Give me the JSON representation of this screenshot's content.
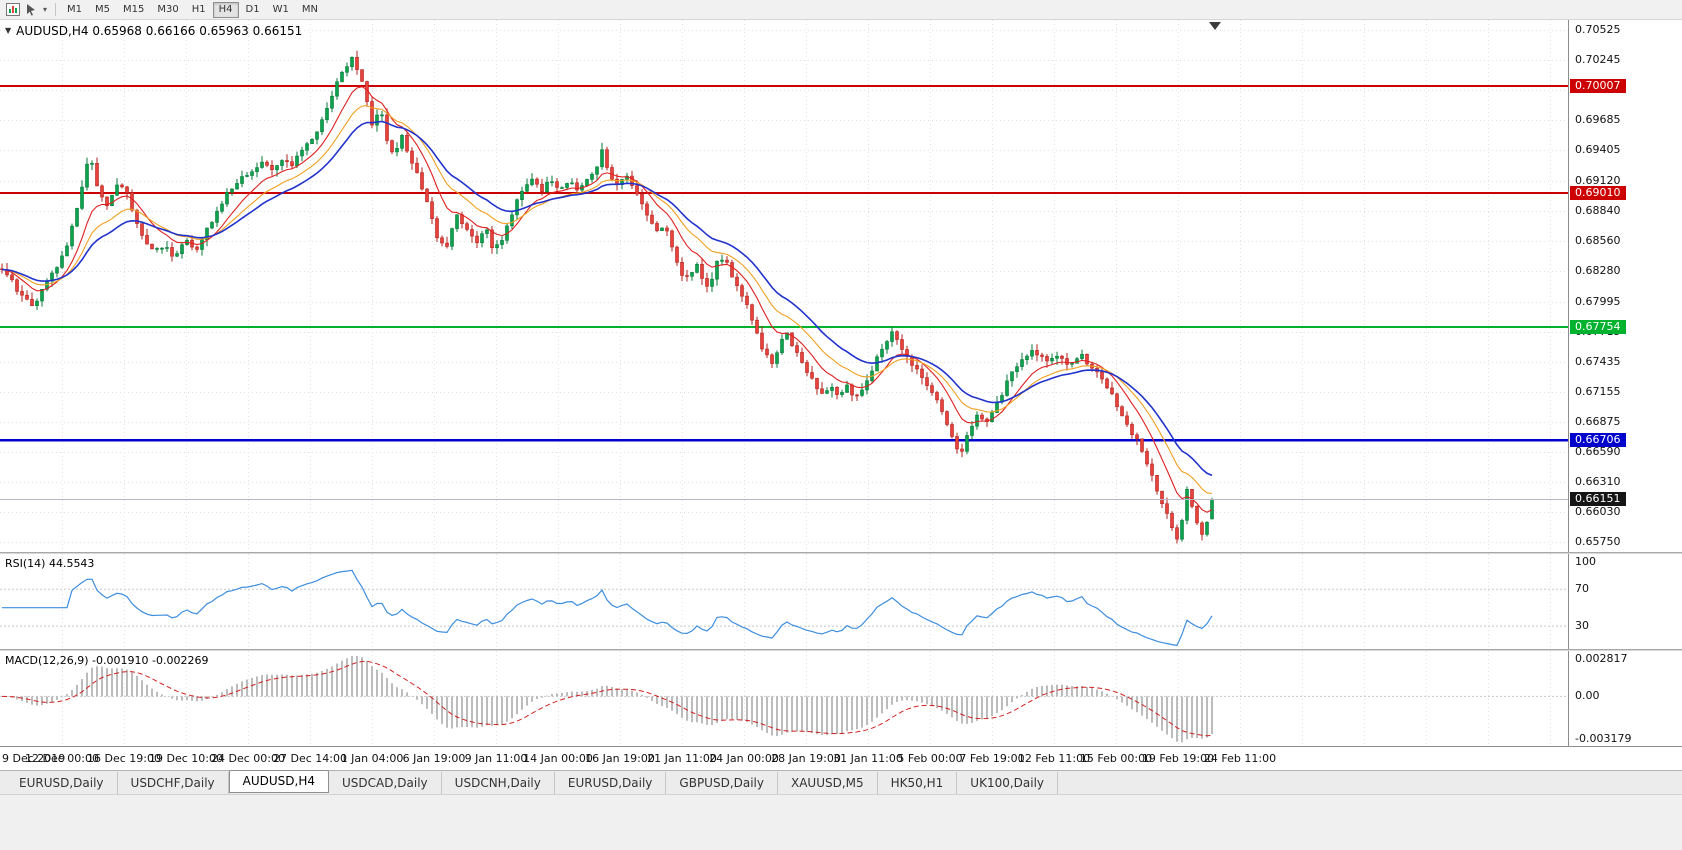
{
  "toolbar": {
    "timeframes": [
      "M1",
      "M5",
      "M15",
      "M30",
      "H1",
      "H4",
      "D1",
      "W1",
      "MN"
    ],
    "active_timeframe": "H4",
    "icons": [
      "new-chart-icon",
      "cursor-tool-icon",
      "dropdown-caret-icon"
    ]
  },
  "chart": {
    "title_line": "AUDUSD,H4 0.65968 0.66166 0.65963 0.66151",
    "symbol": "AUDUSD",
    "timeframe": "H4"
  },
  "rsi_panel": {
    "label": "RSI(14) 44.5543",
    "levels": [
      "100",
      "70",
      "30"
    ]
  },
  "macd_panel": {
    "label": "MACD(12,26,9) -0.001910 -0.002269",
    "scale_labels": [
      "0.002817",
      "0.00",
      "-0.003179"
    ]
  },
  "tabs": {
    "items": [
      "EURUSD,Daily",
      "USDCHF,Daily",
      "AUDUSD,H4",
      "USDCAD,Daily",
      "USDCNH,Daily",
      "EURUSD,Daily",
      "GBPUSD,Daily",
      "XAUUSD,M5",
      "HK50,H1",
      "UK100,Daily"
    ],
    "active_index": 2
  },
  "colors": {
    "bull": "#0ca24e",
    "bull_dark": "#077a38",
    "bear": "#e8423c",
    "bear_dark": "#b2221d",
    "grid": "#e2e2e2",
    "axis_border": "#8c8c8c",
    "window": "#f0f0f0"
  },
  "chart_data": {
    "type": "candlestick",
    "symbol": "AUDUSD",
    "timeframe": "H4",
    "price_axis": {
      "top": 0.7062,
      "bottom": 0.6566,
      "ticks": [
        "0.70525",
        "0.70245",
        "0.69965",
        "0.69685",
        "0.69405",
        "0.69120",
        "0.68840",
        "0.68560",
        "0.68280",
        "0.67995",
        "0.67715",
        "0.67435",
        "0.67155",
        "0.66875",
        "0.66590",
        "0.66310",
        "0.66030",
        "0.65750"
      ]
    },
    "horizontal_lines": [
      {
        "value": 0.70007,
        "label": "0.70007",
        "color": "#cc0000",
        "width": 2
      },
      {
        "value": 0.6901,
        "label": "0.69010",
        "color": "#cc0000",
        "width": 2
      },
      {
        "value": 0.67754,
        "label": "0.67754",
        "color": "#00b22d",
        "width": 2
      },
      {
        "value": 0.66706,
        "label": "0.66706",
        "color": "#0000cc",
        "width": 2.5
      }
    ],
    "current_price": {
      "value": 0.66151,
      "label": "0.66151",
      "badge_bg": "#151515"
    },
    "ohlc_last": {
      "open": 0.65968,
      "high": 0.66166,
      "low": 0.65963,
      "close": 0.66151
    },
    "time_labels": [
      "9 Dec 2019",
      "12 Dec 00:00",
      "16 Dec 19:00",
      "19 Dec 10:00",
      "24 Dec 00:00",
      "27 Dec 14:00",
      "1 Jan 04:00",
      "6 Jan 19:00",
      "9 Jan 11:00",
      "14 Jan 00:00",
      "16 Jan 19:00",
      "21 Jan 11:00",
      "24 Jan 00:00",
      "28 Jan 19:00",
      "31 Jan 11:00",
      "5 Feb 00:00",
      "7 Feb 19:00",
      "12 Feb 11:00",
      "15 Feb 00:00",
      "19 Feb 19:00",
      "24 Feb 11:00"
    ],
    "moving_averages": [
      {
        "name": "ma-fast",
        "period": 9,
        "color": "#e02020"
      },
      {
        "name": "ma-mid",
        "period": 16,
        "color": "#f0a020"
      },
      {
        "name": "ma-slow",
        "period": 24,
        "color": "#2233cc"
      }
    ],
    "indicators": {
      "rsi": {
        "period": 14,
        "last_value": 44.5543,
        "levels": [
          70,
          30
        ],
        "color": "#3e8ede"
      },
      "macd": {
        "fast": 12,
        "slow": 26,
        "signal": 9,
        "last_main": -0.00191,
        "last_signal": -0.002269,
        "histogram_color": "#bcbcbc",
        "signal_color": "#d02020"
      }
    },
    "price_path_anchors": [
      [
        0,
        0.683
      ],
      [
        12,
        0.6818
      ],
      [
        25,
        0.68
      ],
      [
        35,
        0.6796
      ],
      [
        45,
        0.6815
      ],
      [
        58,
        0.6832
      ],
      [
        70,
        0.686
      ],
      [
        82,
        0.6905
      ],
      [
        90,
        0.6938
      ],
      [
        97,
        0.6905
      ],
      [
        108,
        0.689
      ],
      [
        118,
        0.6908
      ],
      [
        128,
        0.6898
      ],
      [
        138,
        0.6868
      ],
      [
        150,
        0.6846
      ],
      [
        163,
        0.6852
      ],
      [
        175,
        0.684
      ],
      [
        186,
        0.6856
      ],
      [
        196,
        0.6846
      ],
      [
        207,
        0.6868
      ],
      [
        218,
        0.6885
      ],
      [
        228,
        0.6902
      ],
      [
        240,
        0.6912
      ],
      [
        252,
        0.6922
      ],
      [
        263,
        0.693
      ],
      [
        272,
        0.6921
      ],
      [
        282,
        0.6931
      ],
      [
        292,
        0.6926
      ],
      [
        302,
        0.694
      ],
      [
        312,
        0.695
      ],
      [
        322,
        0.6968
      ],
      [
        332,
        0.6992
      ],
      [
        342,
        0.7012
      ],
      [
        352,
        0.7028
      ],
      [
        360,
        0.701
      ],
      [
        368,
        0.698
      ],
      [
        374,
        0.6958
      ],
      [
        380,
        0.6985
      ],
      [
        387,
        0.695
      ],
      [
        394,
        0.6936
      ],
      [
        402,
        0.6956
      ],
      [
        410,
        0.693
      ],
      [
        418,
        0.6918
      ],
      [
        428,
        0.6888
      ],
      [
        438,
        0.6858
      ],
      [
        447,
        0.685
      ],
      [
        456,
        0.688
      ],
      [
        466,
        0.6868
      ],
      [
        476,
        0.6855
      ],
      [
        486,
        0.687
      ],
      [
        493,
        0.6844
      ],
      [
        502,
        0.6858
      ],
      [
        512,
        0.6882
      ],
      [
        522,
        0.6902
      ],
      [
        532,
        0.6912
      ],
      [
        542,
        0.6904
      ],
      [
        550,
        0.6916
      ],
      [
        558,
        0.6905
      ],
      [
        568,
        0.6912
      ],
      [
        578,
        0.6904
      ],
      [
        588,
        0.6912
      ],
      [
        596,
        0.6922
      ],
      [
        602,
        0.6941
      ],
      [
        610,
        0.6918
      ],
      [
        618,
        0.6908
      ],
      [
        628,
        0.6916
      ],
      [
        638,
        0.6898
      ],
      [
        648,
        0.6878
      ],
      [
        656,
        0.6862
      ],
      [
        664,
        0.6872
      ],
      [
        672,
        0.6848
      ],
      [
        680,
        0.6828
      ],
      [
        688,
        0.682
      ],
      [
        695,
        0.6836
      ],
      [
        703,
        0.682
      ],
      [
        710,
        0.6812
      ],
      [
        717,
        0.6836
      ],
      [
        724,
        0.6842
      ],
      [
        732,
        0.6824
      ],
      [
        740,
        0.681
      ],
      [
        748,
        0.6796
      ],
      [
        756,
        0.6772
      ],
      [
        764,
        0.6752
      ],
      [
        772,
        0.6744
      ],
      [
        779,
        0.6758
      ],
      [
        786,
        0.6772
      ],
      [
        794,
        0.6754
      ],
      [
        801,
        0.6744
      ],
      [
        809,
        0.6733
      ],
      [
        816,
        0.6718
      ],
      [
        824,
        0.6711
      ],
      [
        832,
        0.6719
      ],
      [
        839,
        0.6709
      ],
      [
        847,
        0.672
      ],
      [
        855,
        0.6708
      ],
      [
        862,
        0.6718
      ],
      [
        870,
        0.6732
      ],
      [
        878,
        0.6748
      ],
      [
        886,
        0.676
      ],
      [
        893,
        0.6772
      ],
      [
        900,
        0.6758
      ],
      [
        908,
        0.6746
      ],
      [
        916,
        0.6738
      ],
      [
        924,
        0.6728
      ],
      [
        932,
        0.6716
      ],
      [
        940,
        0.67
      ],
      [
        948,
        0.6684
      ],
      [
        955,
        0.6666
      ],
      [
        962,
        0.6658
      ],
      [
        970,
        0.6682
      ],
      [
        978,
        0.6696
      ],
      [
        986,
        0.6688
      ],
      [
        994,
        0.67
      ],
      [
        1002,
        0.6714
      ],
      [
        1010,
        0.673
      ],
      [
        1018,
        0.6742
      ],
      [
        1026,
        0.675
      ],
      [
        1034,
        0.6753
      ],
      [
        1042,
        0.6747
      ],
      [
        1050,
        0.6743
      ],
      [
        1058,
        0.6749
      ],
      [
        1066,
        0.6739
      ],
      [
        1074,
        0.6744
      ],
      [
        1082,
        0.6749
      ],
      [
        1090,
        0.6738
      ],
      [
        1098,
        0.6731
      ],
      [
        1106,
        0.6722
      ],
      [
        1114,
        0.6708
      ],
      [
        1122,
        0.6694
      ],
      [
        1130,
        0.6678
      ],
      [
        1138,
        0.6668
      ],
      [
        1146,
        0.6652
      ],
      [
        1154,
        0.6632
      ],
      [
        1162,
        0.6612
      ],
      [
        1170,
        0.6594
      ],
      [
        1177,
        0.658
      ],
      [
        1183,
        0.6598
      ],
      [
        1188,
        0.6628
      ],
      [
        1193,
        0.6606
      ],
      [
        1198,
        0.6588
      ],
      [
        1203,
        0.6582
      ],
      [
        1208,
        0.6596
      ],
      [
        1212,
        0.6607
      ],
      [
        1215,
        0.66151
      ]
    ]
  }
}
